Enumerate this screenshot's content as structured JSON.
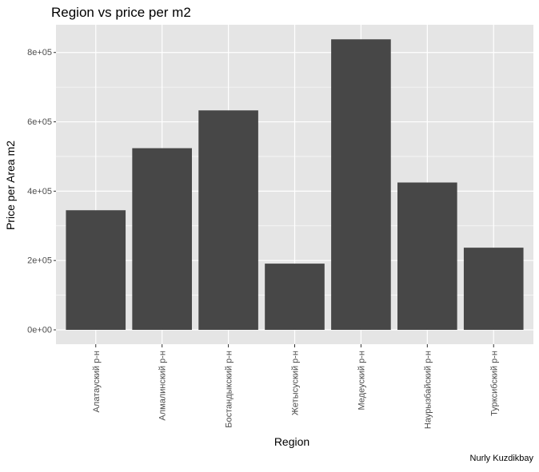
{
  "chart_data": {
    "type": "bar",
    "title": "Region vs price per m2",
    "xlabel": "Region",
    "ylabel": "Price per Area m2",
    "caption": "Nurly Kuzdikbay",
    "categories": [
      "Алатауский р-н",
      "Алмалинский р-н",
      "Бостандыкский р-н",
      "Жетысуский р-н",
      "Медеуский р-н",
      "Наурызбайский р-н",
      "Турксибский р-н"
    ],
    "values": [
      345000,
      524000,
      633000,
      191000,
      838000,
      425000,
      237000
    ],
    "ylim": [
      0,
      880000
    ],
    "yticks": [
      0,
      200000,
      400000,
      600000,
      800000
    ],
    "ytick_labels": [
      "0e+00",
      "2e+05",
      "4e+05",
      "6e+05",
      "8e+05"
    ],
    "grid": true,
    "legend": "none",
    "colors": {
      "bar": "#474747",
      "panel": "#e5e5e5",
      "grid": "#ffffff",
      "text": "#000000",
      "tick_text": "#4d4d4d"
    }
  }
}
